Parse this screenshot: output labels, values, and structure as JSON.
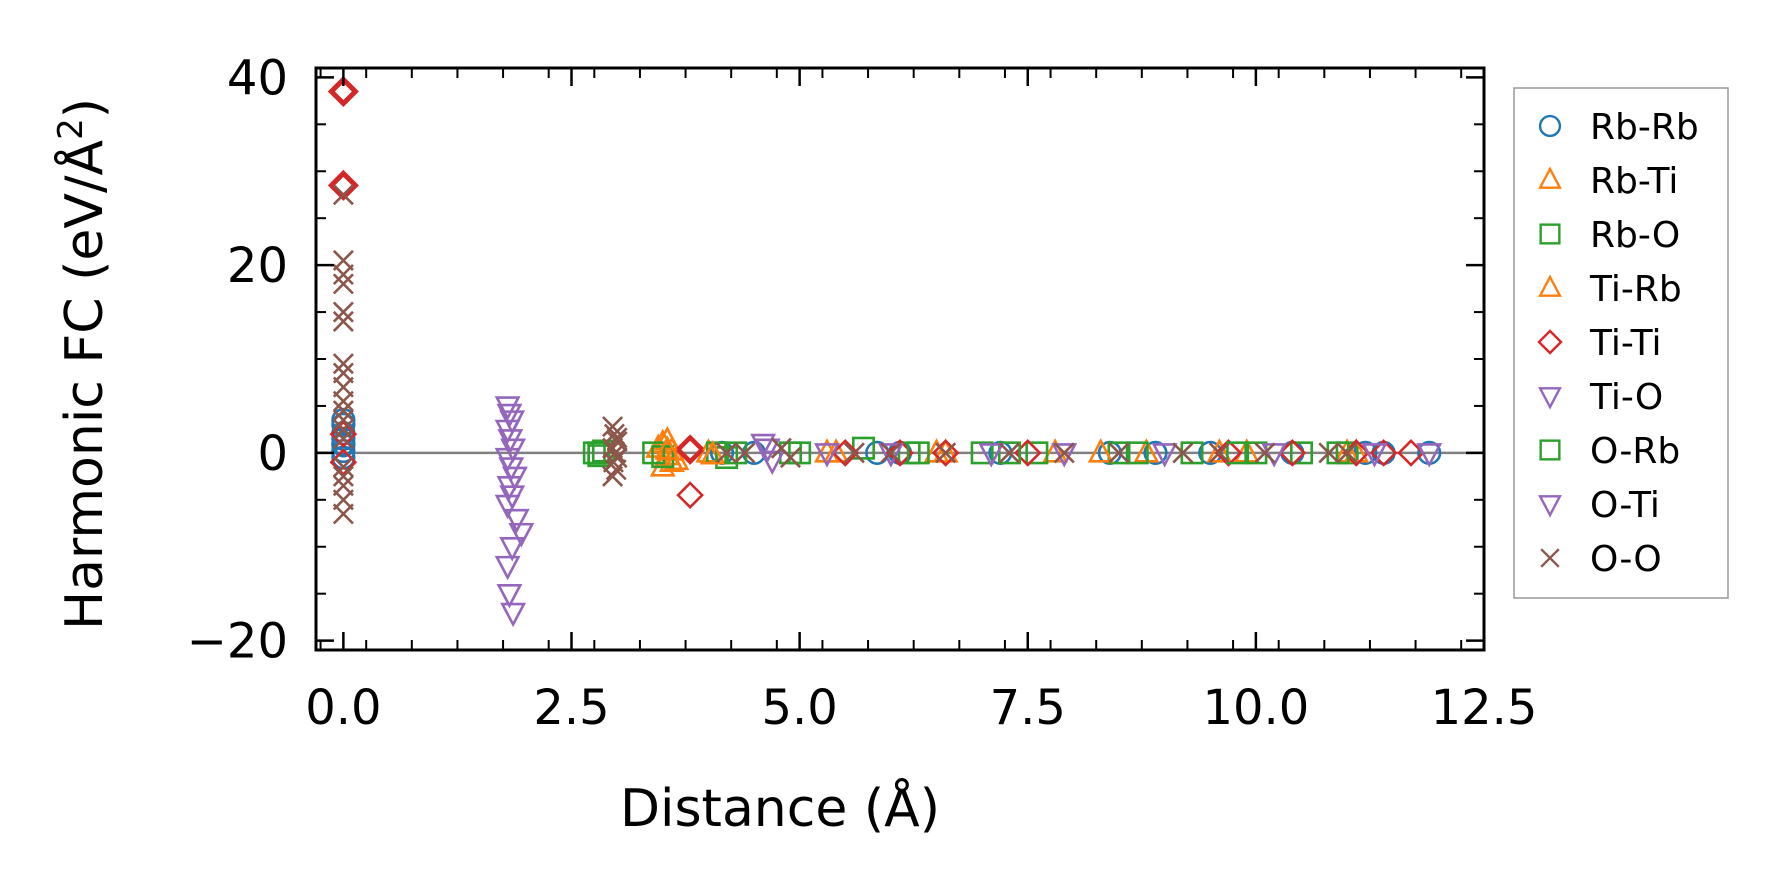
{
  "chart_data": {
    "type": "scatter",
    "title": "",
    "xlabel": "Distance (Å)",
    "ylabel_prefix": "Harmonic FC (eV/Å",
    "ylabel_sup": "2",
    "ylabel_suffix": ")",
    "xlim": [
      -0.3,
      12.5
    ],
    "ylim": [
      -21,
      41
    ],
    "xticks": [
      0.0,
      2.5,
      5.0,
      7.5,
      10.0,
      12.5
    ],
    "xtick_labels": [
      "0.0",
      "2.5",
      "5.0",
      "7.5",
      "10.0",
      "12.5"
    ],
    "yticks": [
      -20,
      0,
      20,
      40
    ],
    "ytick_labels": [
      "−20",
      "0",
      "20",
      "40"
    ],
    "zero_line": true,
    "legend_position": "right",
    "series": [
      {
        "name": "Rb-Rb",
        "marker": "circle",
        "color": "#1f77b4",
        "x": [
          0,
          0,
          0,
          0,
          0,
          0,
          0,
          0,
          4.15,
          4.5,
          5.85,
          6.1,
          7.2,
          8.4,
          8.9,
          9.5,
          10.4,
          11.2,
          11.4,
          11.9
        ],
        "y": [
          0.2,
          0.8,
          1.5,
          2.1,
          3.0,
          3.5,
          -0.5,
          1.0,
          0,
          0,
          0,
          0,
          0,
          0,
          0,
          0,
          0,
          0,
          0,
          0
        ]
      },
      {
        "name": "Rb-Ti",
        "marker": "triangle-up",
        "color": "#ff7f0e",
        "x": [
          3.45,
          3.5,
          3.55,
          3.6,
          3.65,
          3.5,
          3.55,
          3.6,
          4.0,
          5.3,
          6.5,
          7.8,
          8.8,
          9.9,
          11.0
        ],
        "y": [
          0.5,
          1.0,
          -0.3,
          0.2,
          -0.8,
          -1.5,
          1.3,
          -1.0,
          0,
          0,
          0,
          0,
          0,
          0,
          0
        ]
      },
      {
        "name": "Rb-O",
        "marker": "square",
        "color": "#2ca02c",
        "x": [
          2.75,
          2.8,
          2.85,
          3.4,
          3.5,
          4.1,
          4.2,
          4.9,
          5.7,
          6.2,
          7.0,
          7.6,
          8.5,
          9.3,
          10.0,
          10.5,
          11.0
        ],
        "y": [
          0,
          -0.3,
          0.2,
          0,
          -0.4,
          0,
          -0.5,
          0,
          0.5,
          0,
          0,
          0,
          0,
          0,
          0,
          0,
          0
        ]
      },
      {
        "name": "Ti-Rb",
        "marker": "triangle-up",
        "color": "#ff7f0e",
        "x": [
          3.55,
          4.05,
          5.4,
          6.6,
          8.3,
          9.6,
          11.1
        ],
        "y": [
          0.3,
          -0.2,
          0,
          0,
          0,
          0,
          0
        ]
      },
      {
        "name": "Ti-Ti",
        "marker": "diamond",
        "color": "#d62728",
        "x": [
          0,
          0,
          0,
          0,
          3.8,
          3.8,
          3.8,
          5.5,
          6.1,
          6.6,
          7.5,
          9.7,
          10.4,
          11.1,
          11.4,
          11.7
        ],
        "y": [
          38.5,
          28.5,
          2.0,
          -1.0,
          0.5,
          -4.5,
          0.2,
          0,
          0,
          0,
          0,
          0,
          0,
          0,
          0,
          0
        ],
        "thick": [
          true,
          true,
          false,
          false,
          false,
          false,
          false,
          false,
          false,
          false,
          false,
          false,
          false,
          false,
          false,
          false
        ]
      },
      {
        "name": "Ti-O",
        "marker": "triangle-down",
        "color": "#9467bd",
        "x": [
          1.8,
          1.82,
          1.85,
          1.8,
          1.83,
          1.86,
          1.8,
          1.84,
          1.88,
          1.82,
          1.85,
          1.8,
          1.9,
          1.95,
          1.85,
          1.8,
          1.82,
          1.86
        ],
        "y": [
          5.0,
          4.2,
          3.5,
          2.5,
          1.5,
          0.5,
          -0.5,
          -1.5,
          -2.5,
          -3.5,
          -4.5,
          -5.5,
          -7.0,
          -8.5,
          -10.0,
          -12.0,
          -15.0,
          -17.0
        ]
      },
      {
        "name": "O-Rb",
        "marker": "square",
        "color": "#2ca02c",
        "x": [
          2.8,
          4.3,
          5.0,
          6.3,
          7.3,
          8.7,
          9.8,
          10.9
        ],
        "y": [
          0,
          0,
          0,
          0,
          0,
          0,
          0,
          0
        ]
      },
      {
        "name": "O-Ti",
        "marker": "triangle-down",
        "color": "#9467bd",
        "x": [
          4.6,
          4.65,
          4.7,
          5.3,
          6.0,
          7.1,
          7.9,
          9.0,
          10.2,
          11.3,
          11.9
        ],
        "y": [
          1.0,
          0.5,
          -0.8,
          0,
          0,
          0,
          0,
          0,
          0,
          0,
          0
        ]
      },
      {
        "name": "O-O",
        "marker": "x",
        "color": "#8c564b",
        "x": [
          0,
          0,
          0,
          0,
          0,
          0,
          0,
          0,
          0,
          0,
          0,
          0,
          0,
          0,
          0,
          0,
          0,
          0,
          0,
          2.95,
          2.97,
          3.0,
          2.95,
          2.98,
          3.0,
          2.96,
          2.99,
          2.95,
          3.0,
          4.2,
          4.4,
          4.8,
          4.9,
          5.6,
          6.0,
          6.6,
          7.3,
          7.9,
          8.5,
          9.2,
          9.6,
          10.1,
          10.8,
          11.0
        ],
        "y": [
          27.5,
          20.5,
          19.0,
          18.0,
          15.0,
          14.0,
          9.5,
          8.5,
          7.0,
          5.5,
          4.5,
          3.5,
          2.5,
          1.5,
          -1.5,
          -2.5,
          -3.5,
          -5.0,
          -6.5,
          2.8,
          2.0,
          1.2,
          0.5,
          0,
          -0.5,
          -1.0,
          -1.8,
          -2.5,
          1.6,
          0,
          0,
          0.5,
          -0.5,
          0,
          0,
          0,
          0,
          0,
          0,
          0,
          0,
          0,
          0,
          0
        ]
      }
    ]
  }
}
